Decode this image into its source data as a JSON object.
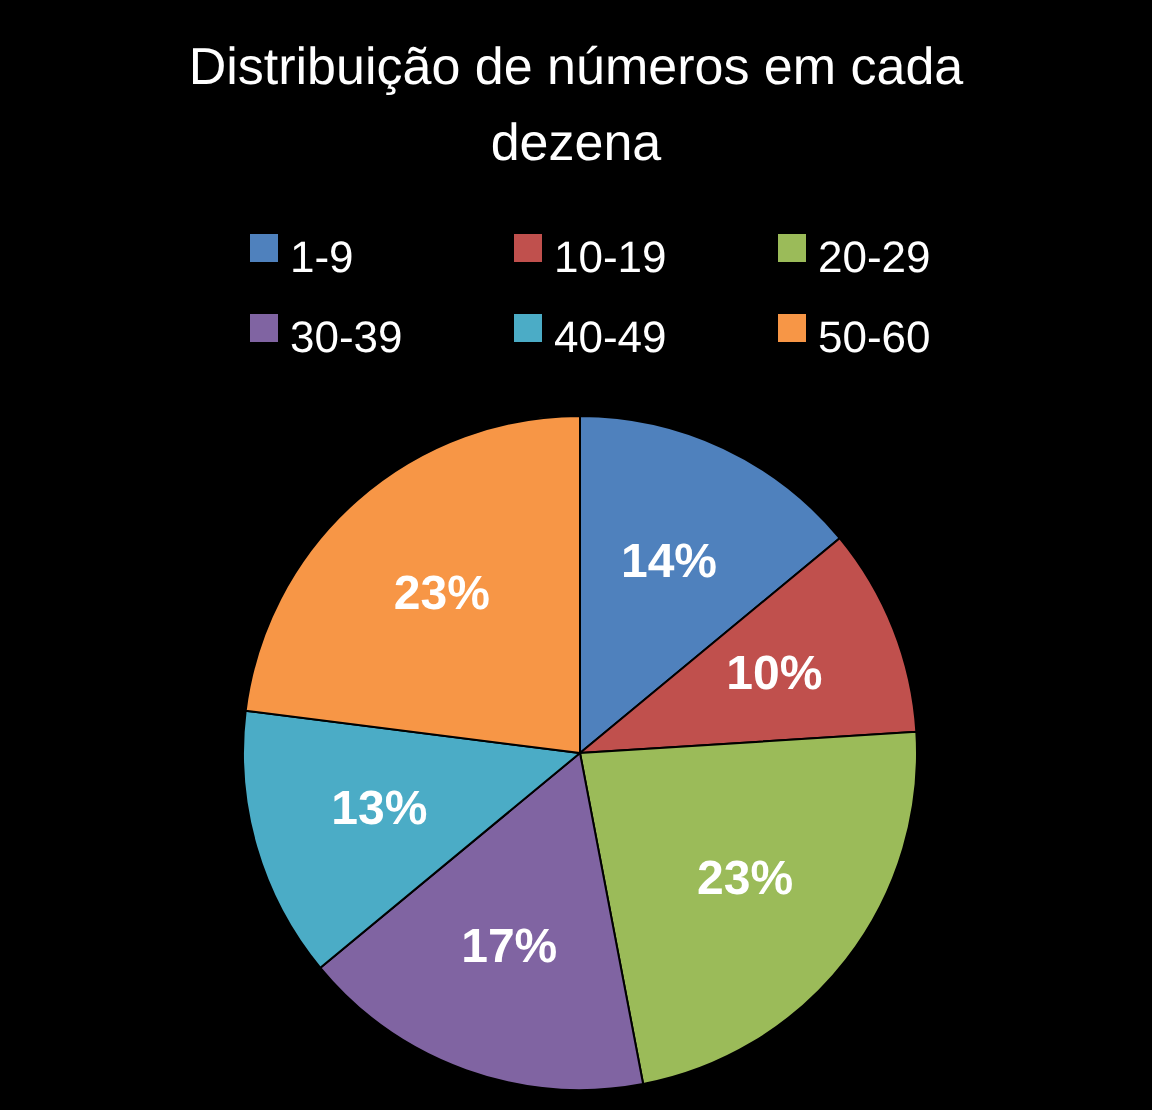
{
  "chart_data": {
    "type": "pie",
    "title": "Distribuição de números em cada dezena",
    "categories": [
      "1-9",
      "10-19",
      "20-29",
      "30-39",
      "40-49",
      "50-60"
    ],
    "values": [
      14,
      10,
      23,
      17,
      13,
      23
    ],
    "value_labels": [
      "14%",
      "10%",
      "23%",
      "17%",
      "13%",
      "23%"
    ],
    "colors": [
      "#4f81bd",
      "#c0504d",
      "#9bbb59",
      "#8064a2",
      "#4bacc6",
      "#f79646"
    ],
    "legend": "top"
  }
}
